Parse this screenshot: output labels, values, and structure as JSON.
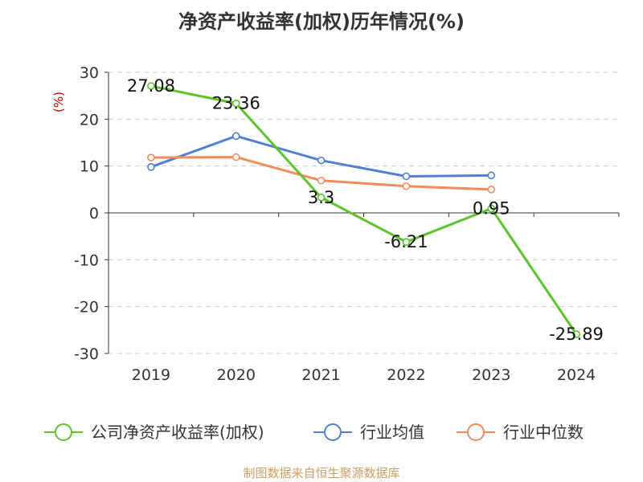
{
  "chart_data": {
    "type": "line",
    "title": "净资产收益率(加权)历年情况(%)",
    "ylabel": "(%)",
    "categories": [
      "2019",
      "2020",
      "2021",
      "2022",
      "2023",
      "2024"
    ],
    "ylim": [
      -30,
      30
    ],
    "yticks": [
      30,
      20,
      10,
      0,
      -10,
      -20,
      -30
    ],
    "grid": true,
    "legend_position": "bottom",
    "series": [
      {
        "name": "公司净资产收益率(加权)",
        "color": "#5cc42a",
        "values": [
          27.08,
          23.36,
          3.3,
          -6.21,
          0.95,
          -25.89
        ],
        "labels": [
          "27.08",
          "23.36",
          "3.3",
          "-6.21",
          "0.95",
          "-25.89"
        ]
      },
      {
        "name": "行业均值",
        "color": "#4f7fd6",
        "values": [
          9.8,
          16.4,
          11.2,
          7.8,
          8.0,
          null
        ]
      },
      {
        "name": "行业中位数",
        "color": "#f28c5b",
        "values": [
          11.8,
          11.9,
          6.9,
          5.7,
          5.0,
          null
        ]
      }
    ],
    "source": "制图数据来自恒生聚源数据库"
  }
}
